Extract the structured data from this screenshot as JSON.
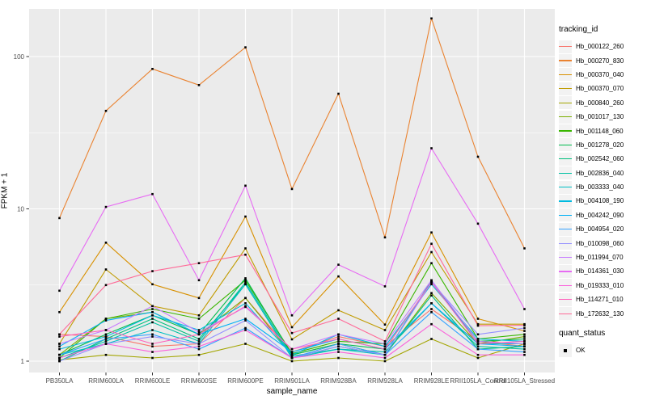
{
  "figure": {
    "background": "#FFFFFF",
    "panel_background": "#EBEBEB",
    "grid_color": "#FFFFFF",
    "tick_mark_color": "#333333",
    "axis_text_color": "#4D4D4D",
    "point_color": "#000000"
  },
  "legend": {
    "tracking_title": "tracking_id",
    "quant_title": "quant_status",
    "quant_items": [
      {
        "label": "OK",
        "marker": "black-square"
      }
    ]
  },
  "chart_data": {
    "type": "line",
    "title": "",
    "xlabel": "sample_name",
    "ylabel": "FPKM + 1",
    "y_scale": "log10",
    "y_ticks": [
      "1",
      "10",
      "100"
    ],
    "y_minor": [
      3.162,
      31.62
    ],
    "ylim": [
      0.85,
      206
    ],
    "legend_position": "right",
    "grid": true,
    "point_marker": "black-square",
    "categories": [
      "PB350LA",
      "RRIM600LA",
      "RRIM600LE",
      "RRIM600SE",
      "RRIM600PE",
      "RRIM901LA",
      "RRIM928BA",
      "RRIM928LA",
      "RRIM928LE",
      "RRII105LA_Control",
      "RRII105LA_Stressed"
    ],
    "series": [
      {
        "name": "Hb_000122_260",
        "color": "#F8766D",
        "values": [
          1.5,
          1.45,
          1.25,
          1.3,
          2.6,
          1.15,
          1.45,
          1.25,
          2.2,
          1.35,
          1.25
        ]
      },
      {
        "name": "Hb_000270_830",
        "color": "#EA8331",
        "values": [
          8.7,
          44.0,
          83.0,
          65.0,
          115.0,
          13.5,
          57.0,
          6.5,
          178.0,
          22.0,
          5.5
        ]
      },
      {
        "name": "Hb_000370_040",
        "color": "#D89000",
        "values": [
          2.1,
          6.0,
          3.2,
          2.6,
          8.9,
          1.67,
          3.6,
          1.74,
          7.0,
          1.9,
          1.58
        ]
      },
      {
        "name": "Hb_000370_070",
        "color": "#C09B00",
        "values": [
          1.3,
          4.0,
          2.3,
          2.0,
          5.5,
          1.39,
          2.16,
          1.6,
          5.2,
          1.75,
          1.75
        ]
      },
      {
        "name": "Hb_000840_260",
        "color": "#A3A500",
        "values": [
          1.02,
          1.1,
          1.05,
          1.1,
          1.3,
          1.0,
          1.05,
          1.0,
          1.4,
          1.05,
          1.3
        ]
      },
      {
        "name": "Hb_001017_130",
        "color": "#7CAE00",
        "values": [
          1.1,
          1.9,
          2.1,
          1.5,
          2.6,
          1.1,
          1.3,
          1.1,
          2.8,
          1.3,
          1.45
        ]
      },
      {
        "name": "Hb_001148_060",
        "color": "#39B600",
        "values": [
          1.05,
          1.9,
          2.2,
          1.9,
          3.4,
          1.12,
          1.35,
          1.3,
          4.4,
          1.4,
          1.5
        ]
      },
      {
        "name": "Hb_001278_020",
        "color": "#00BB4E",
        "values": [
          1.1,
          1.5,
          2.0,
          1.5,
          3.5,
          1.1,
          1.3,
          1.2,
          3.3,
          1.35,
          1.4
        ]
      },
      {
        "name": "Hb_002542_060",
        "color": "#00BF7D",
        "values": [
          1.0,
          1.4,
          1.9,
          1.4,
          3.2,
          1.05,
          1.25,
          1.1,
          2.7,
          1.2,
          1.25
        ]
      },
      {
        "name": "Hb_002836_040",
        "color": "#00C1A3",
        "values": [
          1.05,
          1.35,
          1.8,
          1.35,
          3.3,
          1.08,
          1.2,
          1.15,
          2.4,
          1.25,
          1.2
        ]
      },
      {
        "name": "Hb_003333_040",
        "color": "#00BFC4",
        "values": [
          1.1,
          1.3,
          1.6,
          1.3,
          3.2,
          1.05,
          1.2,
          1.1,
          3.4,
          1.3,
          1.3
        ]
      },
      {
        "name": "Hb_004108_190",
        "color": "#00BAE0",
        "values": [
          1.2,
          1.45,
          2.0,
          1.6,
          2.4,
          1.1,
          1.5,
          1.25,
          3.2,
          1.4,
          1.35
        ]
      },
      {
        "name": "Hb_004242_090",
        "color": "#00B0F6",
        "values": [
          1.25,
          1.85,
          2.1,
          1.5,
          1.9,
          1.15,
          1.4,
          1.2,
          2.4,
          1.3,
          1.25
        ]
      },
      {
        "name": "Hb_004954_020",
        "color": "#35A2FF",
        "values": [
          1.1,
          1.4,
          1.5,
          1.2,
          1.65,
          1.05,
          1.3,
          1.1,
          2.1,
          1.2,
          1.15
        ]
      },
      {
        "name": "Hb_010098_060",
        "color": "#9590FF",
        "values": [
          1.0,
          1.3,
          1.45,
          1.3,
          1.85,
          1.05,
          1.25,
          1.1,
          3.3,
          1.5,
          1.65
        ]
      },
      {
        "name": "Hb_011994_070",
        "color": "#C77CFF",
        "values": [
          1.3,
          1.6,
          2.3,
          1.55,
          2.27,
          1.2,
          1.5,
          1.3,
          3.4,
          1.35,
          1.3
        ]
      },
      {
        "name": "Hb_014361_030",
        "color": "#E76BF3",
        "values": [
          2.9,
          10.3,
          12.5,
          3.4,
          14.2,
          2.0,
          4.3,
          3.1,
          25.0,
          8.0,
          2.2
        ]
      },
      {
        "name": "Hb_019333_010",
        "color": "#FA62DB",
        "values": [
          1.05,
          1.3,
          1.15,
          1.25,
          1.6,
          1.05,
          1.15,
          1.05,
          1.75,
          1.1,
          1.1
        ]
      },
      {
        "name": "Hb_114271_010",
        "color": "#FF62BC",
        "values": [
          1.45,
          1.6,
          1.3,
          1.5,
          2.3,
          1.2,
          1.4,
          1.2,
          3.3,
          1.3,
          1.35
        ]
      },
      {
        "name": "Hb_172632_130",
        "color": "#FF6A98",
        "values": [
          1.5,
          3.16,
          3.9,
          4.4,
          5.0,
          1.53,
          1.9,
          1.35,
          5.9,
          1.71,
          1.72
        ]
      }
    ]
  }
}
